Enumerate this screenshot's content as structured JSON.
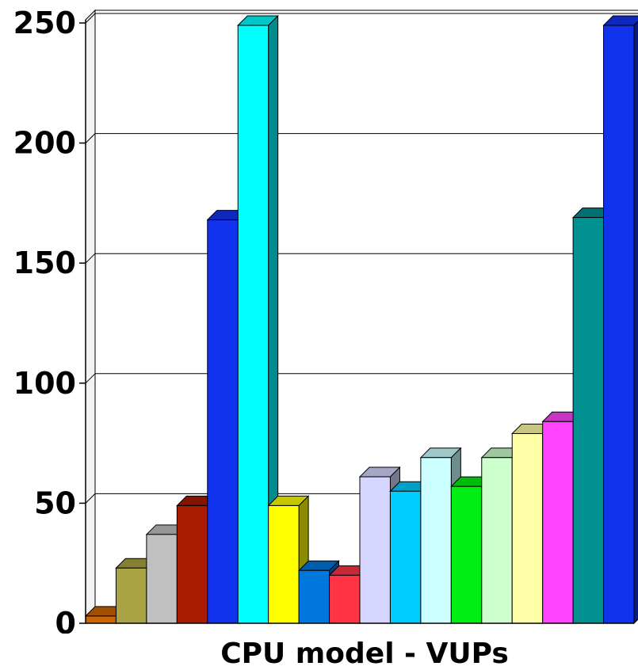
{
  "chart_data": {
    "type": "bar",
    "title": "",
    "xlabel": "CPU model - VUPs",
    "ylabel": "",
    "ylim": [
      0,
      250
    ],
    "yticks": [
      0,
      50,
      100,
      150,
      200,
      250
    ],
    "grid": true,
    "legend": "none",
    "values": [
      3,
      23,
      37,
      49,
      168,
      249,
      49,
      22,
      20,
      61,
      55,
      69,
      57,
      69,
      79,
      84,
      169,
      249
    ],
    "colors": [
      "#cc6600",
      "#aaa444",
      "#c0c0c0",
      "#aa1a00",
      "#1133ee",
      "#00ffff",
      "#ffff00",
      "#0077dd",
      "#ff3344",
      "#d5d5ff",
      "#00ccff",
      "#ccffff",
      "#00ee11",
      "#ccffcc",
      "#ffffa8",
      "#ff44ff",
      "#009090",
      "#1133ee"
    ]
  }
}
